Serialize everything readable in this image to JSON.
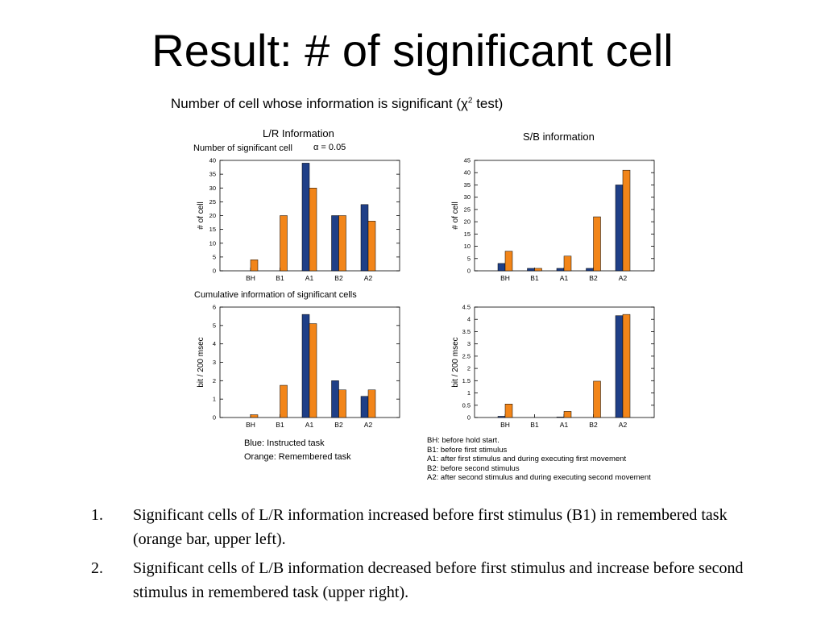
{
  "slide": {
    "title": "Result: # of significant cell"
  },
  "figure": {
    "title_main": "Number of cell whose information is significant (χ",
    "title_sup": "2",
    "title_end": " test)",
    "lr_heading": "L/R Information",
    "sb_heading": "S/B information",
    "sig_heading": "Number of significant cell",
    "alpha_label": "α = 0.05",
    "cum_heading": "Cumulative information of significant cells",
    "legend": {
      "blue": "Blue:    Instructed task",
      "orange": "Orange: Remembered task"
    },
    "abbreviations": [
      "BH:  before hold start.",
      "B1: before first stimulus",
      "A1: after first stimulus and during executing first movement",
      "B2: before second stimulus",
      "A2: after second stimulus and during executing second movement"
    ]
  },
  "colors": {
    "instructed": "#1f3f87",
    "remembered": "#f28519"
  },
  "chart_data": [
    {
      "id": "lr-count",
      "type": "bar",
      "categories": [
        "BH",
        "B1",
        "A1",
        "B2",
        "A2"
      ],
      "series": [
        {
          "values": [
            0,
            0,
            39,
            20,
            24
          ]
        },
        {
          "values": [
            4,
            20,
            30,
            20,
            18
          ]
        }
      ],
      "ylabel": "# of cell",
      "ylim": [
        0,
        40
      ],
      "yticks": [
        "0",
        "5",
        "10",
        "15",
        "20",
        "25",
        "30",
        "35",
        "40"
      ],
      "ytick_values": [
        0,
        5,
        10,
        15,
        20,
        25,
        30,
        35,
        40
      ]
    },
    {
      "id": "sb-count",
      "type": "bar",
      "categories": [
        "BH",
        "B1",
        "A1",
        "B2",
        "A2"
      ],
      "series": [
        {
          "values": [
            3,
            1,
            1,
            1,
            35
          ]
        },
        {
          "values": [
            8,
            1,
            6,
            22,
            41
          ]
        }
      ],
      "ylabel": "# of cell",
      "ylim": [
        0,
        45
      ],
      "yticks": [
        "0",
        "5",
        "10",
        "15",
        "20",
        "25",
        "30",
        "35",
        "40",
        "45"
      ],
      "ytick_values": [
        0,
        5,
        10,
        15,
        20,
        25,
        30,
        35,
        40,
        45
      ]
    },
    {
      "id": "lr-info",
      "type": "bar",
      "categories": [
        "BH",
        "B1",
        "A1",
        "B2",
        "A2"
      ],
      "series": [
        {
          "values": [
            0,
            0,
            5.6,
            2.0,
            1.15
          ]
        },
        {
          "values": [
            0.15,
            1.75,
            5.1,
            1.5,
            1.5
          ]
        }
      ],
      "ylabel": "bit / 200 msec",
      "ylim": [
        0,
        6
      ],
      "yticks": [
        "0",
        "1",
        "2",
        "3",
        "4",
        "5",
        "6"
      ],
      "ytick_values": [
        0,
        1,
        2,
        3,
        4,
        5,
        6
      ]
    },
    {
      "id": "sb-info",
      "type": "bar",
      "categories": [
        "BH",
        "B1",
        "A1",
        "B2",
        "A2"
      ],
      "series": [
        {
          "values": [
            0.05,
            0,
            0.02,
            0,
            4.15
          ]
        },
        {
          "values": [
            0.55,
            0,
            0.25,
            1.48,
            4.2
          ]
        }
      ],
      "ylabel": "bit / 200 msec",
      "ylim": [
        0,
        4.5
      ],
      "yticks": [
        "0",
        "0.5",
        "1",
        "1.5",
        "2",
        "2.5",
        "3",
        "3.5",
        "4",
        "4.5"
      ],
      "ytick_values": [
        0,
        0.5,
        1,
        1.5,
        2,
        2.5,
        3,
        3.5,
        4,
        4.5
      ]
    }
  ],
  "notes": [
    {
      "num": "1.",
      "text": "Significant cells of L/R information increased before first stimulus (B1) in remembered task (orange bar, upper left)."
    },
    {
      "num": "2.",
      "text": "Significant cells of L/B information decreased before first stimulus and increase before second stimulus in remembered task (upper right)."
    }
  ]
}
